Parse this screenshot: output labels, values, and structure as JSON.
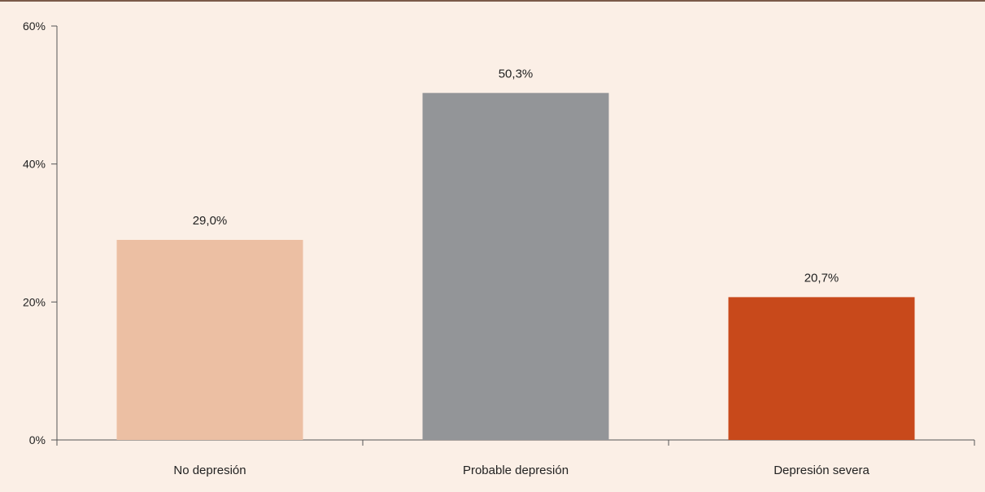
{
  "chart_data": {
    "type": "bar",
    "categories": [
      "No depresión",
      "Probable depresión",
      "Depresión severa"
    ],
    "values": [
      29.0,
      50.3,
      20.7
    ],
    "value_labels": [
      "29,0%",
      "50,3%",
      "20,7%"
    ],
    "colors": [
      "#ecbfa3",
      "#939598",
      "#c8491b"
    ],
    "ylim": [
      0,
      60
    ],
    "yticks": [
      0,
      20,
      40,
      60
    ],
    "ytick_labels": [
      "0%",
      "20%",
      "40%",
      "60%"
    ],
    "title": "",
    "xlabel": "",
    "ylabel": "",
    "grid": false,
    "legend": "none"
  }
}
